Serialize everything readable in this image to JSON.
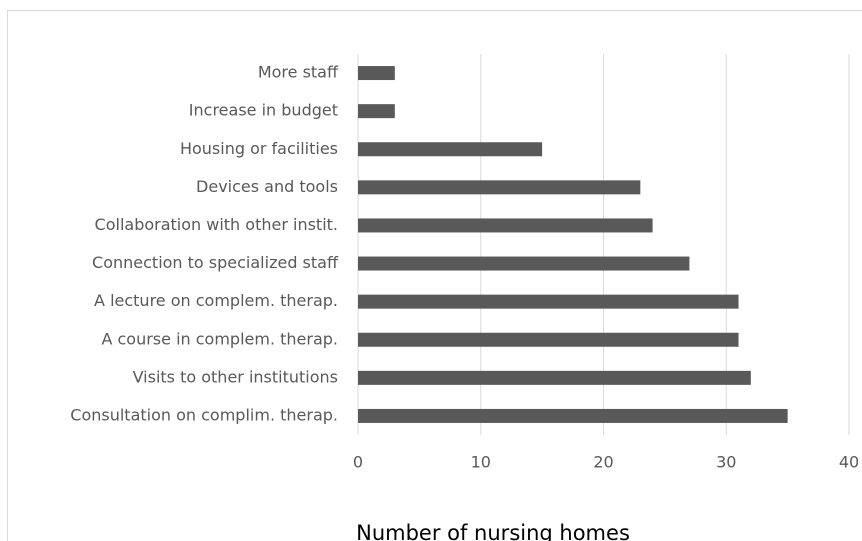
{
  "chart_data": {
    "type": "barh",
    "x_label": "Number of nursing homes",
    "categories": [
      "More staff",
      "Increase in budget",
      "Housing or facilities",
      "Devices and tools",
      "Collaboration with other instit.",
      "Connection to specialized staff",
      "A lecture on complem. therap.",
      "A course in complem. therap.",
      "Visits to other institutions",
      "Consultation on complim. therap."
    ],
    "values": [
      3,
      3,
      15,
      23,
      24,
      27,
      31,
      31,
      32,
      35
    ],
    "color": "#595959",
    "xlim": [
      0,
      40
    ],
    "xticks": [
      0,
      10,
      20,
      30,
      40
    ],
    "grid": true
  }
}
